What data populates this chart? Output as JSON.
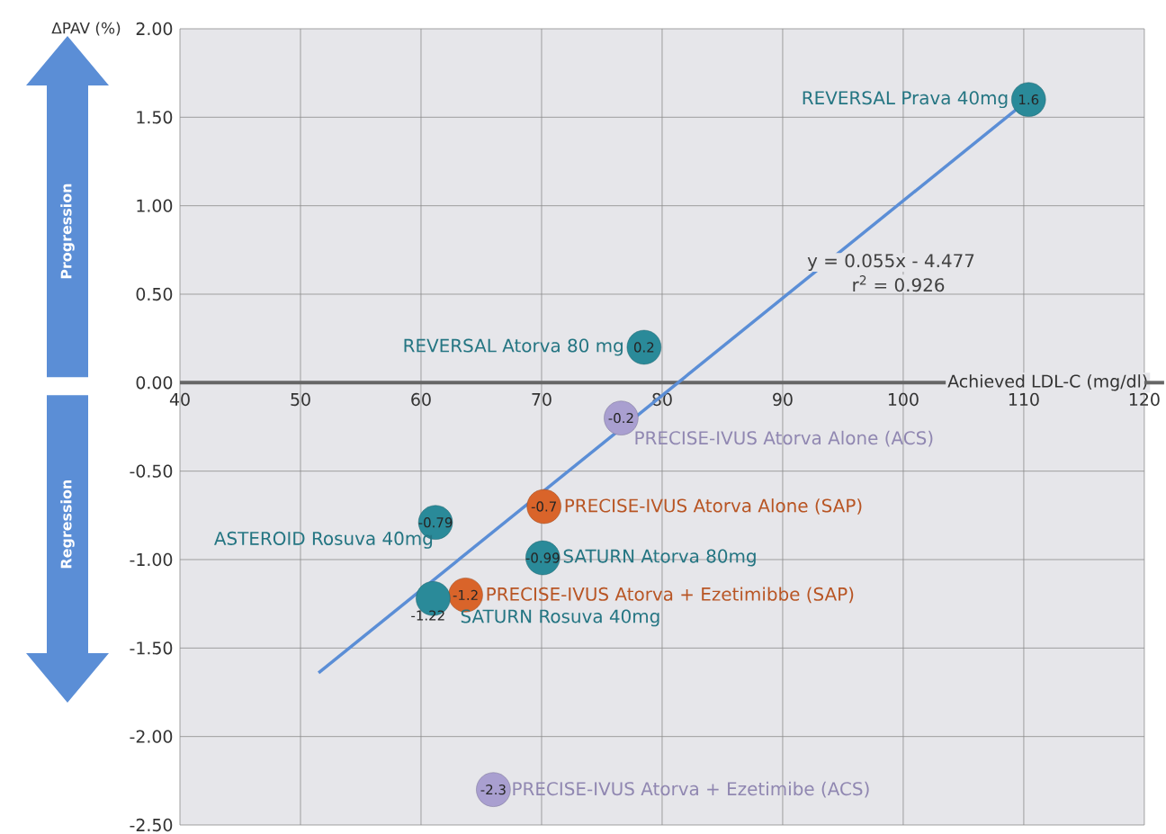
{
  "chart_data": {
    "type": "scatter",
    "xlabel": "Achieved LDL-C (mg/dl)",
    "ylabel": "ΔPAV (%)",
    "x": [
      110.4,
      78.5,
      76.6,
      70.2,
      61.2,
      70.1,
      63.7,
      61.0,
      66.0
    ],
    "values": [
      1.6,
      0.2,
      -0.2,
      -0.7,
      -0.79,
      -0.99,
      -1.2,
      -1.22,
      -2.3
    ],
    "colors": [
      "#2a8a99",
      "#2a8a99",
      "#a99fd0",
      "#d9642a",
      "#2a8a99",
      "#2a8a99",
      "#d9642a",
      "#2a8a99",
      "#a99fd0"
    ],
    "value_labels": [
      "1.6",
      "0.2",
      "-0.2",
      "-0.7",
      "-0.79",
      "-0.99",
      "-1.2",
      "-1.22",
      "-2.3"
    ],
    "series": [
      {
        "type": "line",
        "color": "#5b8ed6",
        "marker": "none",
        "x": [
          51.5,
          110.4
        ],
        "values": [
          -1.64,
          1.6
        ]
      }
    ],
    "annotations": [
      {
        "text": "REVERSAL Prava 40mg",
        "x": 110.4,
        "y": 1.6
      },
      {
        "text": "REVERSAL Atorva 80 mg",
        "x": 78.5,
        "y": 0.2
      },
      {
        "text": "PRECISE-IVUS Atorva Alone (ACS)",
        "x": 76.6,
        "y": -0.2
      },
      {
        "text": "PRECISE-IVUS Atorva Alone (SAP)",
        "x": 70.2,
        "y": -0.7
      },
      {
        "text": "ASTEROID Rosuva 40mg",
        "x": 61.2,
        "y": -0.79
      },
      {
        "text": "SATURN Atorva 80mg",
        "x": 70.1,
        "y": -0.99
      },
      {
        "text": "PRECISE-IVUS Atorva + Ezetimibbe (SAP)",
        "x": 63.7,
        "y": -1.2
      },
      {
        "text": "SATURN Rosuva 40mg",
        "x": 61.0,
        "y": -1.22
      },
      {
        "text": "PRECISE-IVUS Atorva + Ezetimibe (ACS)",
        "x": 66.0,
        "y": -2.3
      },
      "y = 0.055x - 4.477",
      "r$^{2}$ = 0.926",
      "Progression",
      "Regression"
    ],
    "xlim": [
      40,
      120
    ],
    "xticks": [
      40,
      50,
      60,
      70,
      80,
      90,
      100,
      110,
      120
    ],
    "ylim": [
      -2.5,
      2.0
    ],
    "yticks": [
      {
        "value": -2.5,
        "label": "-2.50"
      },
      {
        "value": -2.0,
        "label": "-2.00"
      },
      {
        "value": -1.5,
        "label": "-1.50"
      },
      {
        "value": -1.0,
        "label": "-1.00"
      },
      {
        "value": -0.5,
        "label": "-0.50"
      },
      {
        "value": 0.0,
        "label": "0.00"
      },
      {
        "value": 0.5,
        "label": "0.50"
      },
      {
        "value": 1.0,
        "label": "1.00"
      },
      {
        "value": 1.5,
        "label": "1.50"
      },
      {
        "value": 2.0,
        "label": "2.00"
      }
    ],
    "grid": true
  }
}
